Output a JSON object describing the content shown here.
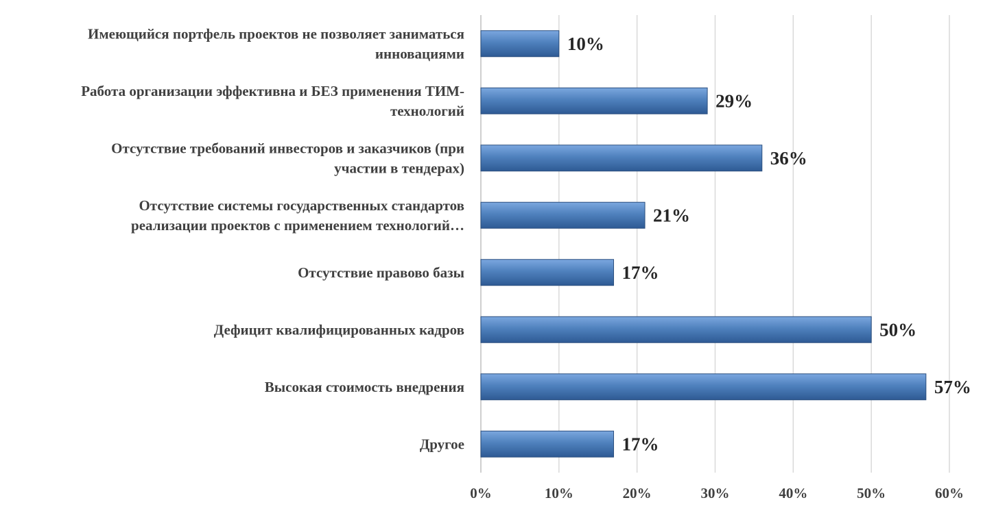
{
  "chart_data": {
    "type": "bar",
    "orientation": "horizontal",
    "categories": [
      [
        "Имеющийся портфель проектов не позволяет заниматься",
        "инновациями"
      ],
      [
        "Работа организации эффективна и БЕЗ применения ТИМ-",
        "технологий"
      ],
      [
        "Отсутствие требований инвесторов и заказчиков (при",
        "участии в тендерах)"
      ],
      [
        "Отсутствие системы государственных стандартов",
        "реализации проектов с применением технологий…"
      ],
      [
        "Отсутствие правово базы"
      ],
      [
        "Дефицит квалифицированных кадров"
      ],
      [
        "Высокая стоимость внедрения"
      ],
      [
        "Другое"
      ]
    ],
    "values": [
      10,
      29,
      36,
      21,
      17,
      50,
      57,
      17
    ],
    "data_labels": [
      "10%",
      "29%",
      "36%",
      "21%",
      "17%",
      "50%",
      "57%",
      "17%"
    ],
    "xlim": [
      0,
      60
    ],
    "x_ticks": [
      0,
      10,
      20,
      30,
      40,
      50,
      60
    ],
    "x_tick_labels": [
      "0%",
      "10%",
      "20%",
      "30%",
      "40%",
      "50%",
      "60%"
    ],
    "title": "",
    "xlabel": "",
    "ylabel": "",
    "grid": "vertical",
    "legend": "none",
    "colors": {
      "bar": "#4f81bd",
      "bar_light": "#7ba7df",
      "bar_dark": "#2e5a94",
      "bar_edge": "#2b4f7e",
      "grid": "#d9d9d9",
      "axis": "#bfbfbf"
    }
  }
}
